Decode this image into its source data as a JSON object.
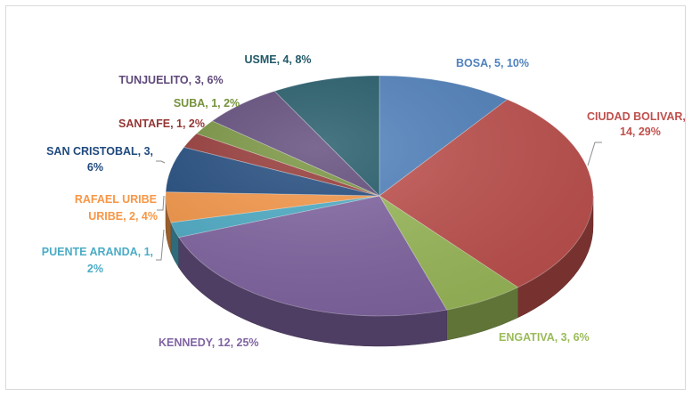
{
  "chart_data": {
    "type": "pie",
    "title": "",
    "style": "3d",
    "slices": [
      {
        "label": "BOSA",
        "value": 5,
        "percent": "10%",
        "color": "#4F81BD"
      },
      {
        "label": "CIUDAD BOLIVAR",
        "value": 14,
        "percent": "29%",
        "color": "#C0504D"
      },
      {
        "label": "ENGATIVA",
        "value": 3,
        "percent": "6%",
        "color": "#9BBB59"
      },
      {
        "label": "KENNEDY",
        "value": 12,
        "percent": "25%",
        "color": "#8064A2"
      },
      {
        "label": "PUENTE ARANDA",
        "value": 1,
        "percent": "2%",
        "color": "#4BACC6"
      },
      {
        "label": "RAFAEL URIBE URIBE",
        "value": 2,
        "percent": "4%",
        "color": "#F79646"
      },
      {
        "label": "SAN CRISTOBAL",
        "value": 3,
        "percent": "6%",
        "color": "#1F497D"
      },
      {
        "label": "SANTAFE",
        "value": 1,
        "percent": "2%",
        "color": "#943634"
      },
      {
        "label": "SUBA",
        "value": 1,
        "percent": "2%",
        "color": "#76923C"
      },
      {
        "label": "TUNJUELITO",
        "value": 3,
        "percent": "6%",
        "color": "#5F497A"
      },
      {
        "label": "USME",
        "value": 4,
        "percent": "8%",
        "color": "#215968"
      }
    ],
    "data_labels": [
      {
        "lines": [
          "BOSA, 5, 10%"
        ]
      },
      {
        "lines": [
          "CIUDAD BOLIVAR,",
          "14, 29%"
        ]
      },
      {
        "lines": [
          "ENGATIVA, 3, 6%"
        ]
      },
      {
        "lines": [
          "KENNEDY, 12, 25%"
        ]
      },
      {
        "lines": [
          "PUENTE ARANDA, 1,",
          "2%"
        ]
      },
      {
        "lines": [
          "RAFAEL URIBE",
          "URIBE, 2, 4%"
        ]
      },
      {
        "lines": [
          "SAN CRISTOBAL, 3,",
          "6%"
        ]
      },
      {
        "lines": [
          "SANTAFE, 1, 2%"
        ]
      },
      {
        "lines": [
          "SUBA, 1, 2%"
        ]
      },
      {
        "lines": [
          "TUNJUELITO, 3, 6%"
        ]
      },
      {
        "lines": [
          "USME, 4, 8%"
        ]
      }
    ]
  }
}
